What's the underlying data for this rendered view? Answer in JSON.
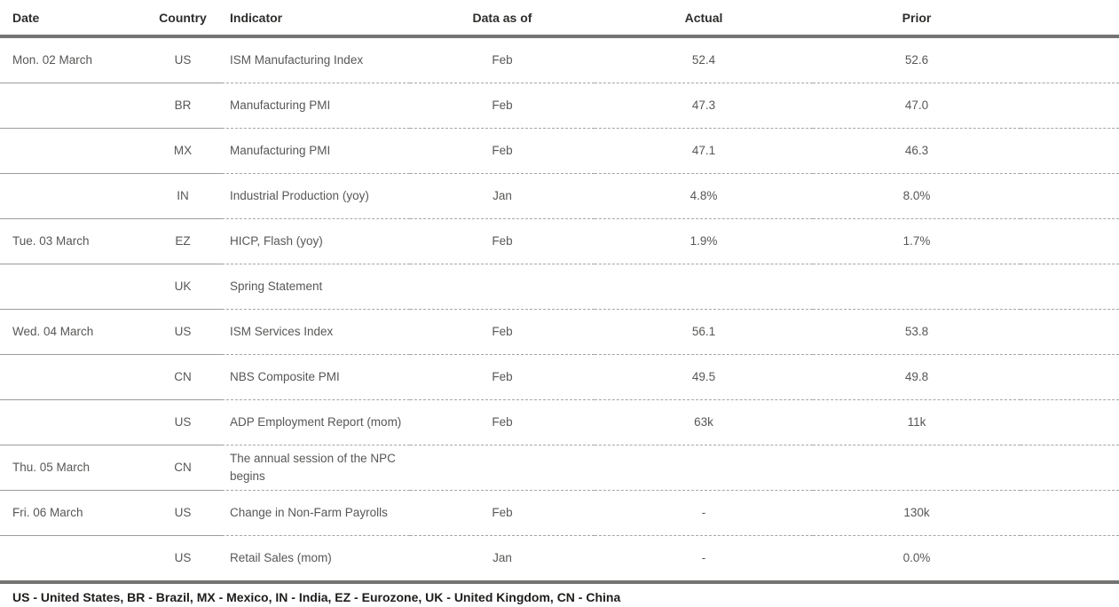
{
  "table": {
    "columns": [
      {
        "label": "Date"
      },
      {
        "label": "Country"
      },
      {
        "label": "Indicator"
      },
      {
        "label": "Data as of"
      },
      {
        "label": "Actual"
      },
      {
        "label": "Prior"
      }
    ],
    "rows": [
      {
        "date": "Mon. 02 March",
        "country": "US",
        "indicator": "ISM Manufacturing Index",
        "data_as_of": "Feb",
        "actual": "52.4",
        "prior": "52.6"
      },
      {
        "date": "",
        "country": "BR",
        "indicator": "Manufacturing PMI",
        "data_as_of": "Feb",
        "actual": "47.3",
        "prior": "47.0"
      },
      {
        "date": "",
        "country": "MX",
        "indicator": "Manufacturing PMI",
        "data_as_of": "Feb",
        "actual": "47.1",
        "prior": "46.3"
      },
      {
        "date": "",
        "country": "IN",
        "indicator": "Industrial Production (yoy)",
        "data_as_of": "Jan",
        "actual": "4.8%",
        "prior": "8.0%"
      },
      {
        "date": "Tue. 03 March",
        "country": "EZ",
        "indicator": "HICP, Flash (yoy)",
        "data_as_of": "Feb",
        "actual": "1.9%",
        "prior": "1.7%"
      },
      {
        "date": "",
        "country": "UK",
        "indicator": "Spring Statement",
        "data_as_of": "",
        "actual": "",
        "prior": ""
      },
      {
        "date": "Wed. 04 March",
        "country": "US",
        "indicator": "ISM Services Index",
        "data_as_of": "Feb",
        "actual": "56.1",
        "prior": "53.8"
      },
      {
        "date": "",
        "country": "CN",
        "indicator": "NBS Composite PMI",
        "data_as_of": "Feb",
        "actual": "49.5",
        "prior": "49.8"
      },
      {
        "date": "",
        "country": "US",
        "indicator": "ADP Employment Report (mom)",
        "data_as_of": "Feb",
        "actual": "63k",
        "prior": "11k"
      },
      {
        "date": "Thu. 05 March",
        "country": "CN",
        "indicator": "The annual session of the NPC begins",
        "data_as_of": "",
        "actual": "",
        "prior": ""
      },
      {
        "date": "Fri. 06 March",
        "country": "US",
        "indicator": "Change in Non-Farm Payrolls",
        "data_as_of": "Feb",
        "actual": "-",
        "prior": "130k"
      },
      {
        "date": "",
        "country": "US",
        "indicator": "Retail Sales (mom)",
        "data_as_of": "Jan",
        "actual": "-",
        "prior": "0.0%"
      }
    ]
  },
  "footer": {
    "legend": "US - United States, BR - Brazil, MX - Mexico, IN - India, EZ - Eurozone, UK - United Kingdom, CN - China"
  },
  "colors": {
    "header_text": "#2e2e2d",
    "body_text": "#575756",
    "footer_text": "#1d1d1b",
    "thick_rule": "#747473",
    "thin_rule_solid": "#9b9b9a",
    "thin_rule_dashed": "#a6a6a5"
  },
  "chart_data": {
    "type": "table",
    "title": "",
    "columns": [
      "Date",
      "Country",
      "Indicator",
      "Data as of",
      "Actual",
      "Prior"
    ],
    "rows": [
      [
        "Mon. 02 March",
        "US",
        "ISM Manufacturing Index",
        "Feb",
        "52.4",
        "52.6"
      ],
      [
        "",
        "BR",
        "Manufacturing PMI",
        "Feb",
        "47.3",
        "47.0"
      ],
      [
        "",
        "MX",
        "Manufacturing PMI",
        "Feb",
        "47.1",
        "46.3"
      ],
      [
        "",
        "IN",
        "Industrial Production (yoy)",
        "Jan",
        "4.8%",
        "8.0%"
      ],
      [
        "Tue. 03 March",
        "EZ",
        "HICP, Flash (yoy)",
        "Feb",
        "1.9%",
        "1.7%"
      ],
      [
        "",
        "UK",
        "Spring Statement",
        "",
        "",
        ""
      ],
      [
        "Wed. 04 March",
        "US",
        "ISM Services Index",
        "Feb",
        "56.1",
        "53.8"
      ],
      [
        "",
        "CN",
        "NBS Composite PMI",
        "Feb",
        "49.5",
        "49.8"
      ],
      [
        "",
        "US",
        "ADP Employment Report (mom)",
        "Feb",
        "63k",
        "11k"
      ],
      [
        "Thu. 05 March",
        "CN",
        "The annual session of the NPC begins",
        "",
        "",
        ""
      ],
      [
        "Fri. 06 March",
        "US",
        "Change in Non-Farm Payrolls",
        "Feb",
        "-",
        "130k"
      ],
      [
        "",
        "US",
        "Retail Sales (mom)",
        "Jan",
        "-",
        "0.0%"
      ]
    ],
    "legend": "US - United States, BR - Brazil, MX - Mexico, IN - India, EZ - Eurozone, UK - United Kingdom, CN - China"
  }
}
